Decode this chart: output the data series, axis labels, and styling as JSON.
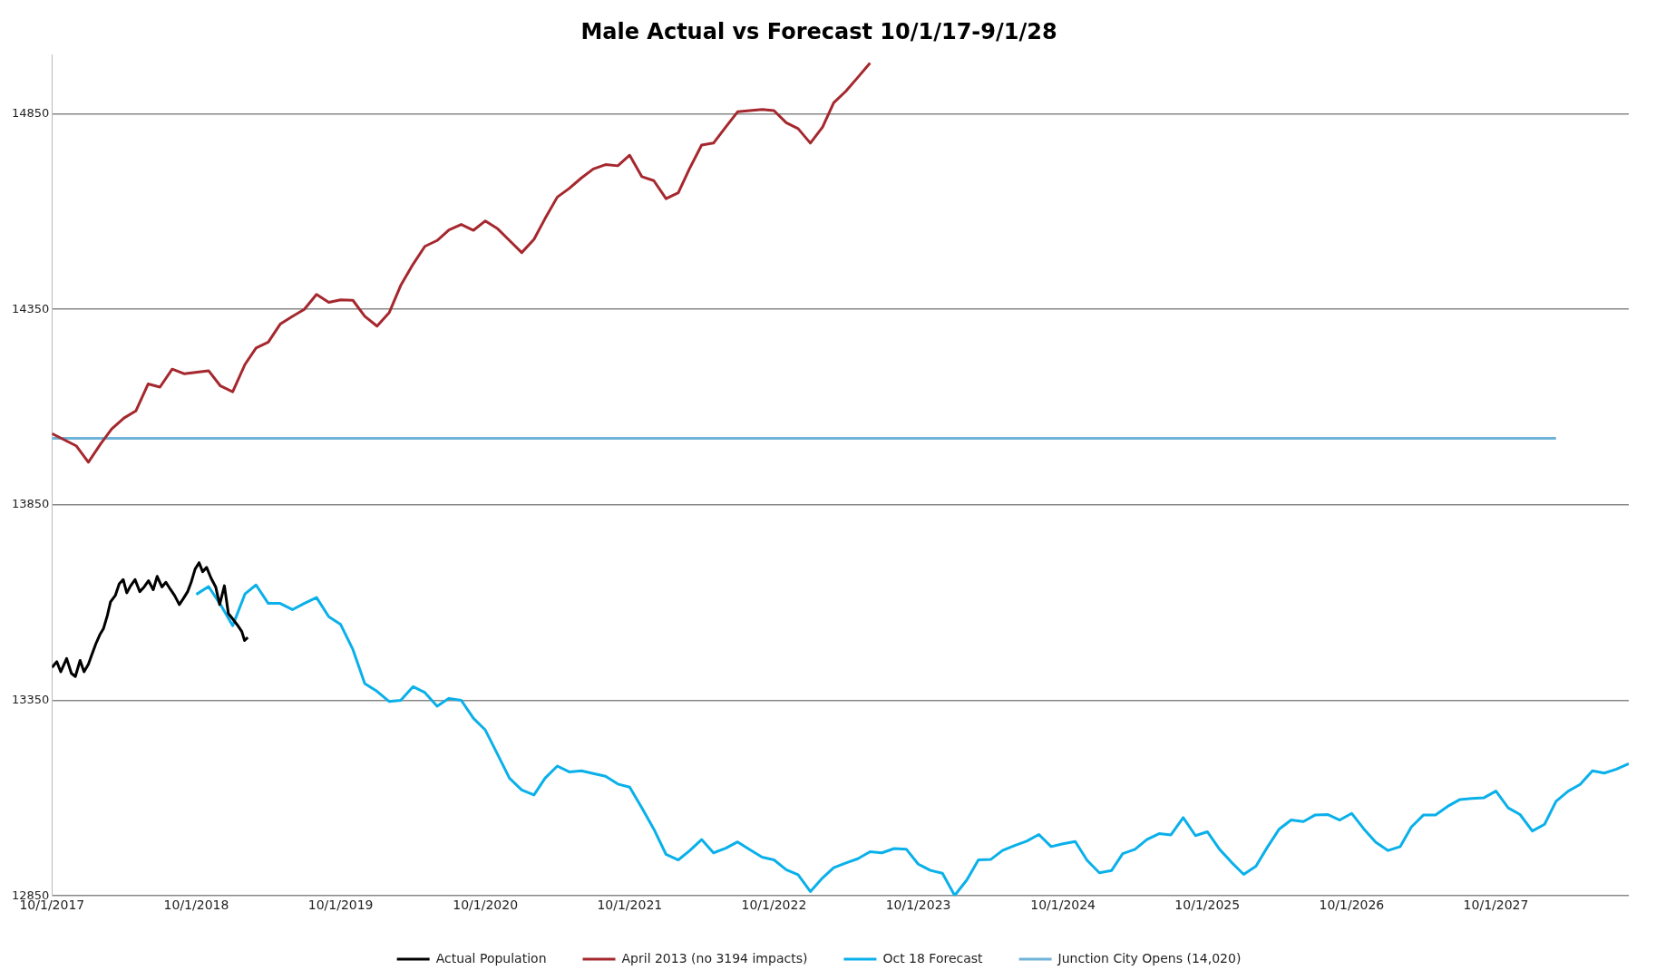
{
  "chart_data": {
    "type": "line",
    "title": "Male Actual vs Forecast 10/1/17-9/1/28",
    "xlim": [
      "2017-10-01",
      "2028-09-01"
    ],
    "xticks": [
      {
        "value": "2017-10-01",
        "label": "10/1/2017"
      },
      {
        "value": "2018-10-01",
        "label": "10/1/2018"
      },
      {
        "value": "2019-10-01",
        "label": "10/1/2019"
      },
      {
        "value": "2020-10-01",
        "label": "10/1/2020"
      },
      {
        "value": "2021-10-01",
        "label": "10/1/2021"
      },
      {
        "value": "2022-10-01",
        "label": "10/1/2022"
      },
      {
        "value": "2023-10-01",
        "label": "10/1/2023"
      },
      {
        "value": "2024-10-01",
        "label": "10/1/2024"
      },
      {
        "value": "2025-10-01",
        "label": "10/1/2025"
      },
      {
        "value": "2026-10-01",
        "label": "10/1/2026"
      },
      {
        "value": "2027-10-01",
        "label": "10/1/2027"
      }
    ],
    "ylim": [
      12850,
      15000
    ],
    "yticks": [
      12850,
      13350,
      13850,
      14350,
      14850
    ],
    "grid": "y",
    "legend": "bottom",
    "marker": "none",
    "line_style": "solid",
    "series": [
      {
        "name": "Actual Population",
        "color": "#000000",
        "x": [
          "2017-10-01",
          "2017-10-13",
          "2017-10-23",
          "2017-11-07",
          "2017-11-19",
          "2017-11-29",
          "2017-12-11",
          "2017-12-21",
          "2018-01-01",
          "2018-01-09",
          "2018-01-20",
          "2018-01-30",
          "2018-02-08",
          "2018-02-18",
          "2018-02-26",
          "2018-03-10",
          "2018-03-20",
          "2018-03-30",
          "2018-04-08",
          "2018-04-18",
          "2018-04-29",
          "2018-05-11",
          "2018-05-22",
          "2018-06-02",
          "2018-06-14",
          "2018-06-24",
          "2018-07-06",
          "2018-07-16",
          "2018-07-28",
          "2018-08-07",
          "2018-08-19",
          "2018-08-29",
          "2018-09-09",
          "2018-09-18",
          "2018-09-28",
          "2018-10-08",
          "2018-10-17",
          "2018-10-27",
          "2018-11-07",
          "2018-11-19",
          "2018-11-29",
          "2018-12-11",
          "2018-12-21",
          "2019-01-02",
          "2019-01-14",
          "2019-01-24",
          "2019-01-31",
          "2019-02-08"
        ],
        "values": [
          13434,
          13449,
          13423,
          13457,
          13419,
          13411,
          13452,
          13423,
          13442,
          13465,
          13495,
          13518,
          13533,
          13567,
          13602,
          13618,
          13648,
          13659,
          13625,
          13643,
          13659,
          13628,
          13640,
          13656,
          13633,
          13667,
          13640,
          13652,
          13633,
          13618,
          13595,
          13610,
          13628,
          13652,
          13686,
          13702,
          13679,
          13690,
          13663,
          13640,
          13595,
          13643,
          13572,
          13557,
          13541,
          13526,
          13503,
          13511
        ]
      },
      {
        "name": "April 2013 (no 3194 impacts)",
        "color": "#a5282e",
        "x": [
          "2017-10-01",
          "2017-12-01",
          "2018-01-01",
          "2018-02-01",
          "2018-03-01",
          "2018-04-01",
          "2018-05-01",
          "2018-06-01",
          "2018-07-01",
          "2018-08-01",
          "2018-09-01",
          "2018-11-01",
          "2018-12-01",
          "2019-01-01",
          "2019-02-01",
          "2019-03-01",
          "2019-04-01",
          "2019-05-01",
          "2019-06-01",
          "2019-07-01",
          "2019-08-01",
          "2019-09-01",
          "2019-10-01",
          "2019-11-01",
          "2019-12-01",
          "2020-01-01",
          "2020-02-01",
          "2020-03-01",
          "2020-04-01",
          "2020-05-01",
          "2020-06-01",
          "2020-07-01",
          "2020-08-01",
          "2020-09-01",
          "2020-10-01",
          "2020-11-01",
          "2020-12-01",
          "2021-01-01",
          "2021-02-01",
          "2021-03-01",
          "2021-04-01",
          "2021-05-01",
          "2021-06-01",
          "2021-07-01",
          "2021-08-01",
          "2021-09-01",
          "2021-10-01",
          "2021-11-01",
          "2021-12-01",
          "2022-01-01",
          "2022-02-01",
          "2022-03-01",
          "2022-04-01",
          "2022-05-01",
          "2022-06-01",
          "2022-07-01",
          "2022-08-01",
          "2022-09-01",
          "2022-10-01",
          "2022-11-01",
          "2022-12-01",
          "2023-01-01",
          "2023-02-01",
          "2023-03-01",
          "2023-04-01",
          "2023-05-01",
          "2023-06-01"
        ],
        "values": [
          14032,
          14001,
          13959,
          14006,
          14044,
          14072,
          14090,
          14159,
          14151,
          14197,
          14185,
          14193,
          14154,
          14139,
          14209,
          14251,
          14266,
          14312,
          14332,
          14350,
          14388,
          14368,
          14374,
          14373,
          14332,
          14307,
          14342,
          14411,
          14465,
          14511,
          14526,
          14553,
          14567,
          14552,
          14576,
          14556,
          14526,
          14495,
          14529,
          14582,
          14637,
          14659,
          14686,
          14709,
          14720,
          14717,
          14744,
          14689,
          14679,
          14633,
          14648,
          14709,
          14770,
          14775,
          14816,
          14855,
          14858,
          14861,
          14858,
          14827,
          14812,
          14775,
          14816,
          14878,
          14908,
          14943,
          14980
        ]
      },
      {
        "name": "Oct 18 Forecast",
        "color": "#0ab0ea",
        "x": [
          "2018-10-01",
          "2018-11-01",
          "2018-12-01",
          "2019-01-01",
          "2019-02-01",
          "2019-03-01",
          "2019-04-01",
          "2019-05-01",
          "2019-06-01",
          "2019-07-01",
          "2019-08-01",
          "2019-09-01",
          "2019-10-01",
          "2019-11-01",
          "2019-12-01",
          "2020-01-01",
          "2020-02-01",
          "2020-03-01",
          "2020-04-01",
          "2020-05-01",
          "2020-06-01",
          "2020-07-01",
          "2020-08-01",
          "2020-09-01",
          "2020-10-01",
          "2020-11-01",
          "2020-12-01",
          "2021-01-01",
          "2021-02-01",
          "2021-03-01",
          "2021-04-01",
          "2021-05-01",
          "2021-06-01",
          "2021-07-01",
          "2021-08-01",
          "2021-09-01",
          "2021-10-01",
          "2021-11-01",
          "2021-12-01",
          "2022-01-01",
          "2022-02-01",
          "2022-03-01",
          "2022-04-01",
          "2022-05-01",
          "2022-06-01",
          "2022-07-01",
          "2022-08-01",
          "2022-09-01",
          "2022-10-01",
          "2022-11-01",
          "2022-12-01",
          "2023-01-01",
          "2023-02-01",
          "2023-03-01",
          "2023-04-01",
          "2023-05-01",
          "2023-06-01",
          "2023-07-01",
          "2023-08-01",
          "2023-09-01",
          "2023-10-01",
          "2023-11-01",
          "2023-12-01",
          "2024-01-01",
          "2024-02-01",
          "2024-03-01",
          "2024-04-01",
          "2024-05-01",
          "2024-06-01",
          "2024-07-01",
          "2024-08-01",
          "2024-09-01",
          "2024-10-01",
          "2024-11-01",
          "2024-12-01",
          "2025-01-01",
          "2025-02-01",
          "2025-03-01",
          "2025-04-01",
          "2025-05-01",
          "2025-06-01",
          "2025-07-01",
          "2025-08-01",
          "2025-09-01",
          "2025-10-01",
          "2025-11-01",
          "2025-12-01",
          "2026-01-01",
          "2026-02-01",
          "2026-03-01",
          "2026-04-01",
          "2026-05-01",
          "2026-06-01",
          "2026-07-01",
          "2026-08-01",
          "2026-09-01",
          "2026-10-01",
          "2026-11-01",
          "2026-12-01",
          "2027-01-01",
          "2027-02-01",
          "2027-03-01",
          "2027-04-01",
          "2027-05-01",
          "2027-06-01",
          "2027-07-01",
          "2027-08-01",
          "2027-09-01",
          "2027-10-01",
          "2027-11-01",
          "2027-12-01",
          "2028-01-01",
          "2028-02-01",
          "2028-03-01",
          "2028-04-01",
          "2028-05-01",
          "2028-06-01",
          "2028-07-01",
          "2028-08-01",
          "2028-09-01"
        ],
        "values": [
          13621,
          13641,
          13595,
          13541,
          13622,
          13645,
          13598,
          13598,
          13582,
          13598,
          13613,
          13564,
          13544,
          13480,
          13393,
          13373,
          13347,
          13350,
          13385,
          13370,
          13335,
          13355,
          13350,
          13304,
          13274,
          13212,
          13151,
          13121,
          13108,
          13151,
          13182,
          13167,
          13170,
          13163,
          13156,
          13136,
          13128,
          13075,
          13021,
          12956,
          12942,
          12965,
          12994,
          12960,
          12972,
          12988,
          12968,
          12949,
          12942,
          12917,
          12904,
          12861,
          12896,
          12922,
          12934,
          12945,
          12963,
          12960,
          12971,
          12969,
          12931,
          12915,
          12908,
          12851,
          12891,
          12942,
          12943,
          12966,
          12979,
          12990,
          13007,
          12976,
          12983,
          12989,
          12941,
          12909,
          12915,
          12958,
          12969,
          12994,
          13009,
          13006,
          13050,
          13004,
          13014,
          12969,
          12936,
          12905,
          12926,
          12973,
          13021,
          13044,
          13040,
          13057,
          13058,
          13044,
          13061,
          13021,
          12987,
          12966,
          12976,
          13026,
          13057,
          13057,
          13079,
          13096,
          13099,
          13101,
          13118,
          13075,
          13058,
          13016,
          13033,
          13092,
          13118,
          13135,
          13170,
          13164,
          13174,
          13188
        ]
      },
      {
        "name": "Junction City Opens (14,020)",
        "color": "#6fb3d8",
        "x": [
          "2017-10-01",
          "2028-03-01"
        ],
        "values": [
          14020,
          14020
        ]
      }
    ]
  }
}
